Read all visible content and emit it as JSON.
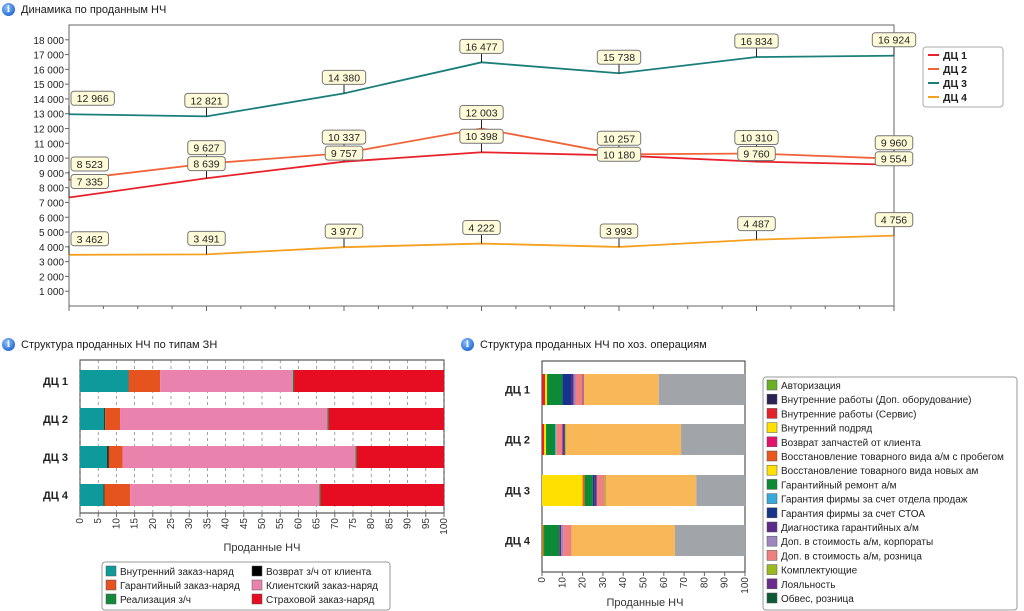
{
  "panels": {
    "top_title": "Динамика по проданным НЧ",
    "left_title": "Структура проданных НЧ по типам ЗН",
    "right_title": "Структура проданных НЧ по хоз. операциям"
  },
  "chart_data": [
    {
      "type": "line",
      "title": "",
      "x": [
        1,
        2,
        3,
        4,
        5,
        6,
        7
      ],
      "ylim": [
        0,
        19000
      ],
      "yticks": [
        1000,
        2000,
        3000,
        4000,
        5000,
        6000,
        7000,
        8000,
        9000,
        10000,
        11000,
        12000,
        13000,
        14000,
        15000,
        16000,
        17000,
        18000
      ],
      "legend_position": "right",
      "series": [
        {
          "name": "ДЦ 1",
          "color": "#e8212b",
          "values": [
            7335,
            8639,
            9757,
            10398,
            10180,
            9760,
            9554
          ]
        },
        {
          "name": "ДЦ 2",
          "color": "#f0643a",
          "values": [
            8523,
            9627,
            10337,
            12003,
            10257,
            10310,
            9960
          ]
        },
        {
          "name": "ДЦ 3",
          "color": "#1a7f7a",
          "values": [
            12966,
            12821,
            14380,
            16477,
            15738,
            16834,
            16924
          ]
        },
        {
          "name": "ДЦ 4",
          "color": "#f5a020",
          "values": [
            3462,
            3491,
            3977,
            4222,
            3993,
            4487,
            4756
          ]
        }
      ]
    },
    {
      "type": "bar",
      "orientation": "horizontal",
      "stacked": "percent",
      "categories": [
        "ДЦ 1",
        "ДЦ 2",
        "ДЦ 3",
        "ДЦ 4"
      ],
      "xlabel": "Проданные НЧ",
      "xlim": [
        0,
        100
      ],
      "xticks": [
        0,
        5,
        10,
        15,
        20,
        25,
        30,
        35,
        40,
        45,
        50,
        55,
        60,
        65,
        70,
        75,
        80,
        85,
        90,
        95,
        100
      ],
      "grid": true,
      "legend_position": "bottom",
      "series": [
        {
          "name": "Внутренний заказ-наряд",
          "color": "#0e9a9a",
          "values": [
            13.3,
            6.7,
            7.5,
            6.5
          ]
        },
        {
          "name": "Возврат з/ч от клиента",
          "color": "#000000",
          "values": [
            0.1,
            0.2,
            0.4,
            0.2
          ]
        },
        {
          "name": "Гарантийный заказ-наряд",
          "color": "#e5531f",
          "values": [
            8.6,
            4.1,
            3.8,
            7.1
          ]
        },
        {
          "name": "Клиентский заказ-наряд",
          "color": "#ea82ae",
          "values": [
            36.5,
            57,
            64,
            52
          ]
        },
        {
          "name": "Реализация з/ч",
          "color": "#138a3a",
          "values": [
            0.3,
            0.3,
            0.3,
            0.3
          ]
        },
        {
          "name": "Страховой заказ-наряд",
          "color": "#e60d22",
          "values": [
            41.2,
            31.7,
            24,
            33.9
          ]
        }
      ]
    },
    {
      "type": "bar",
      "orientation": "horizontal",
      "stacked": "percent",
      "categories": [
        "ДЦ 1",
        "ДЦ 2",
        "ДЦ 3",
        "ДЦ 4"
      ],
      "xlabel": "Проданные НЧ",
      "xlim": [
        0,
        100
      ],
      "xticks": [
        0,
        10,
        20,
        30,
        40,
        50,
        60,
        70,
        80,
        90,
        100
      ],
      "legend_position": "right",
      "series": [
        {
          "name": "Авторизация",
          "color": "#6ab023",
          "values": [
            0,
            0,
            0,
            0.5
          ]
        },
        {
          "name": "Внутренние работы (Доп. оборудование)",
          "color": "#2a2456",
          "values": [
            0,
            0,
            0,
            0
          ]
        },
        {
          "name": "Внутренние работы (Сервис)",
          "color": "#e3232a",
          "values": [
            1.5,
            1,
            0,
            0
          ]
        },
        {
          "name": "Внутренний подряд",
          "color": "#ffe000",
          "values": [
            0,
            0,
            20,
            0
          ]
        },
        {
          "name": "Возврат запчастей от клиента",
          "color": "#e3116a",
          "values": [
            0,
            0,
            0,
            0
          ]
        },
        {
          "name": "Восстановление товарного вида а/м с пробегом",
          "color": "#e9581f",
          "values": [
            0,
            0,
            1,
            0.5
          ]
        },
        {
          "name": "Восстановление товарного вида новых ам",
          "color": "#ffe000",
          "values": [
            1,
            1,
            0,
            0
          ]
        },
        {
          "name": "Гарантийный ремонт а/м",
          "color": "#0c8a36",
          "values": [
            7.5,
            4.5,
            4,
            7.5
          ]
        },
        {
          "name": "Гарантия фирмы за счет отдела продаж",
          "color": "#36a9dd",
          "values": [
            0,
            0.5,
            0,
            0
          ]
        },
        {
          "name": "Гарантия фирмы за счет СТОА",
          "color": "#16348a",
          "values": [
            4.5,
            0,
            1,
            0
          ]
        },
        {
          "name": "Диагностика гарантийных а/м",
          "color": "#5e2a8a",
          "values": [
            1,
            0,
            1,
            1
          ]
        },
        {
          "name": "Доп. в стоимость а/м, корпораты",
          "color": "#9d86c0",
          "values": [
            1,
            0,
            0,
            1
          ]
        },
        {
          "name": "Доп. в стоимость а/м, розница",
          "color": "#ef8080",
          "values": [
            3.5,
            3,
            4,
            4
          ]
        },
        {
          "name": "Комплектующие",
          "color": "#9ab91e",
          "values": [
            0,
            0,
            0.5,
            0
          ]
        },
        {
          "name": "Лояльность",
          "color": "#6a2b8e",
          "values": [
            0.5,
            1,
            0,
            0
          ]
        },
        {
          "name": "Обвес, розница",
          "color": "#0d5a36",
          "values": [
            0,
            0.5,
            0,
            0
          ]
        },
        {
          "color": "#f8b858",
          "values": [
            37,
            57,
            44.5,
            51
          ]
        },
        {
          "color": "#a1a5aa",
          "values": [
            42.5,
            31.5,
            24,
            34.5
          ]
        }
      ]
    }
  ]
}
